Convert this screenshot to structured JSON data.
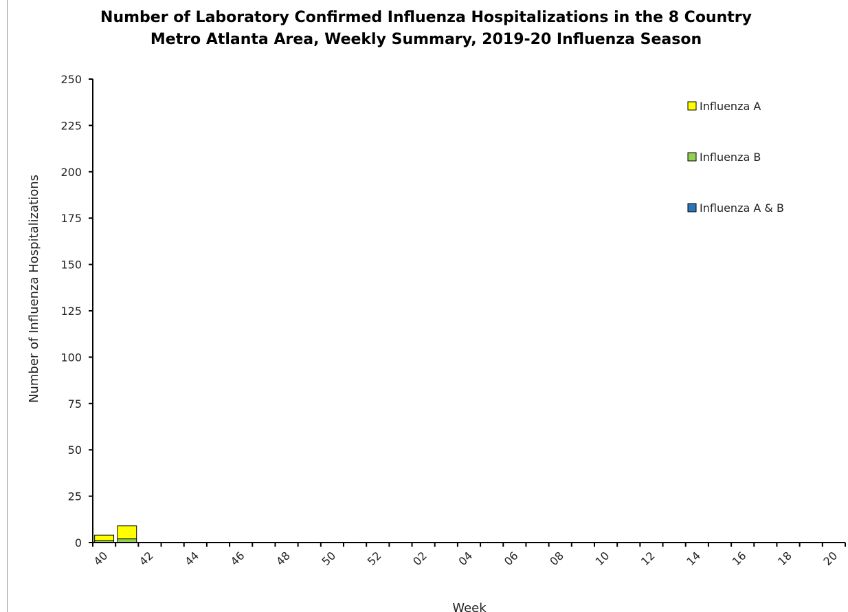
{
  "chart_data": {
    "type": "stacked-bar",
    "title": "Number of Laboratory Confirmed Influenza Hospitalizations in the 8 Country Metro Atlanta Area, Weekly Summary, 2019-20 Influenza Season",
    "x_label": "Week",
    "y_label": "Number of Influenza Hospitalizations",
    "categories": [
      "40",
      null,
      "42",
      null,
      "44",
      null,
      "46",
      null,
      "48",
      null,
      "50",
      null,
      "52",
      null,
      "02",
      null,
      "04",
      null,
      "06",
      null,
      "08",
      null,
      "10",
      null,
      "12",
      null,
      "14",
      null,
      "16",
      null,
      "18",
      null,
      "20"
    ],
    "series": [
      {
        "name": "Influenza A",
        "color": "#ffff00",
        "values": [
          3,
          7,
          null,
          null,
          null,
          null,
          null,
          null,
          null,
          null,
          null,
          null,
          null,
          null,
          null,
          null,
          null,
          null,
          null,
          null,
          null,
          null,
          null,
          null,
          null,
          null,
          null,
          null,
          null,
          null,
          null,
          null,
          null
        ]
      },
      {
        "name": "Influenza B",
        "color": "#92d050",
        "values": [
          1,
          2,
          null,
          null,
          null,
          null,
          null,
          null,
          null,
          null,
          null,
          null,
          null,
          null,
          null,
          null,
          null,
          null,
          null,
          null,
          null,
          null,
          null,
          null,
          null,
          null,
          null,
          null,
          null,
          null,
          null,
          null,
          null
        ]
      },
      {
        "name": "Influenza A & B",
        "color": "#2e75b6",
        "values": [
          0,
          0,
          null,
          null,
          null,
          null,
          null,
          null,
          null,
          null,
          null,
          null,
          null,
          null,
          null,
          null,
          null,
          null,
          null,
          null,
          null,
          null,
          null,
          null,
          null,
          null,
          null,
          null,
          null,
          null,
          null,
          null,
          null
        ]
      }
    ],
    "ylim": [
      0,
      250
    ],
    "yticks": [
      0,
      25,
      50,
      75,
      100,
      125,
      150,
      175,
      200,
      225,
      250
    ],
    "legend": "top-right"
  }
}
